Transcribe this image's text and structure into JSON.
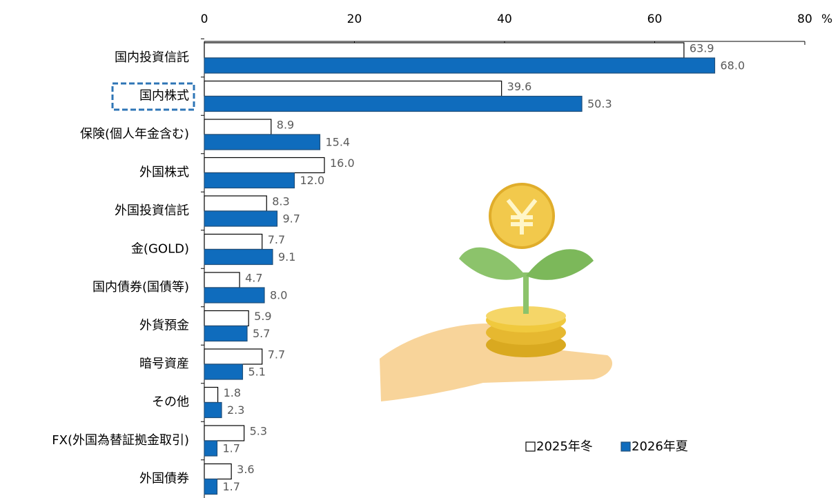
{
  "chart_data": {
    "type": "hbar",
    "categories": [
      "国内投資信託",
      "国内株式",
      "保険(個人年金含む)",
      "外国株式",
      "外国投資信託",
      "金(GOLD)",
      "国内債券(国債等)",
      "外貨預金",
      "暗号資産",
      "その他",
      "FX(外国為替証拠金取引)",
      "外国債券"
    ],
    "series": [
      {
        "name": "2025年冬",
        "color": "#ffffff",
        "values": [
          63.9,
          39.6,
          8.9,
          16.0,
          8.3,
          7.7,
          4.7,
          5.9,
          7.7,
          1.8,
          5.3,
          3.6
        ],
        "value_labels": [
          "63.9",
          "39.6",
          "8.9",
          "16.0",
          "8.3",
          "7.7",
          "4.7",
          "5.9",
          "7.7",
          "1.8",
          "5.3",
          "3.6"
        ]
      },
      {
        "name": "2026年夏",
        "color": "#0f6cbd",
        "values": [
          68.0,
          50.3,
          15.4,
          12.0,
          9.7,
          9.1,
          8.0,
          5.7,
          5.1,
          2.3,
          1.7,
          1.7
        ],
        "value_labels": [
          "68.0",
          "50.3",
          "15.4",
          "12.0",
          "9.7",
          "9.1",
          "8.0",
          "5.7",
          "5.1",
          "2.3",
          "1.7",
          "1.7"
        ]
      }
    ],
    "xlim": [
      0,
      80
    ],
    "xticks": [
      0,
      20,
      40,
      60,
      80
    ],
    "x_unit": "%"
  }
}
